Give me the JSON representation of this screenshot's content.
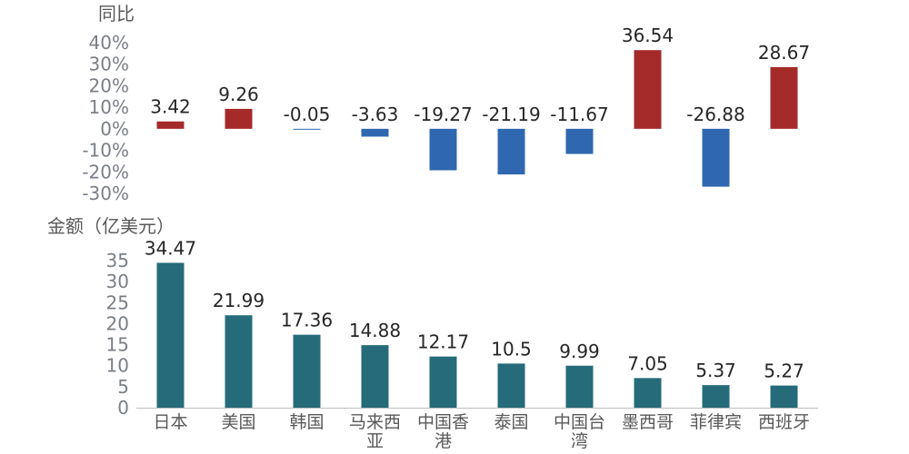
{
  "chart_data": [
    {
      "type": "bar",
      "ylabel": "同比",
      "categories": [
        "日本",
        "美国",
        "韩国",
        "马来西亚",
        "中国香港",
        "泰国",
        "中国台湾",
        "墨西哥",
        "菲律宾",
        "西班牙"
      ],
      "values": [
        3.42,
        9.26,
        -0.05,
        -3.63,
        -19.27,
        -21.19,
        -11.67,
        36.54,
        -26.88,
        28.67
      ],
      "ylim": [
        -30,
        40
      ],
      "yticks": [
        "40%",
        "30%",
        "20%",
        "10%",
        "0%",
        "-10%",
        "-20%",
        "-30%"
      ],
      "colors": {
        "positive": "#a52a2a",
        "negative": "#2f68b0"
      },
      "grid": false
    },
    {
      "type": "bar",
      "ylabel": "金额（亿美元）",
      "categories": [
        "日本",
        "美国",
        "韩国",
        "马来西亚",
        "中国香港",
        "泰国",
        "中国台湾",
        "墨西哥",
        "菲律宾",
        "西班牙"
      ],
      "values": [
        34.47,
        21.99,
        17.36,
        14.88,
        12.17,
        10.5,
        9.99,
        7.05,
        5.37,
        5.27
      ],
      "ylim": [
        0,
        35
      ],
      "yticks": [
        "35",
        "30",
        "25",
        "20",
        "15",
        "10",
        "5",
        "0"
      ],
      "color": "#256b7a",
      "grid": false
    }
  ],
  "category_lines": [
    [
      "日本"
    ],
    [
      "美国"
    ],
    [
      "韩国"
    ],
    [
      "马来西",
      "亚"
    ],
    [
      "中国香",
      "港"
    ],
    [
      "泰国"
    ],
    [
      "中国台",
      "湾"
    ],
    [
      "墨西哥"
    ],
    [
      "菲律宾"
    ],
    [
      "西班牙"
    ]
  ]
}
